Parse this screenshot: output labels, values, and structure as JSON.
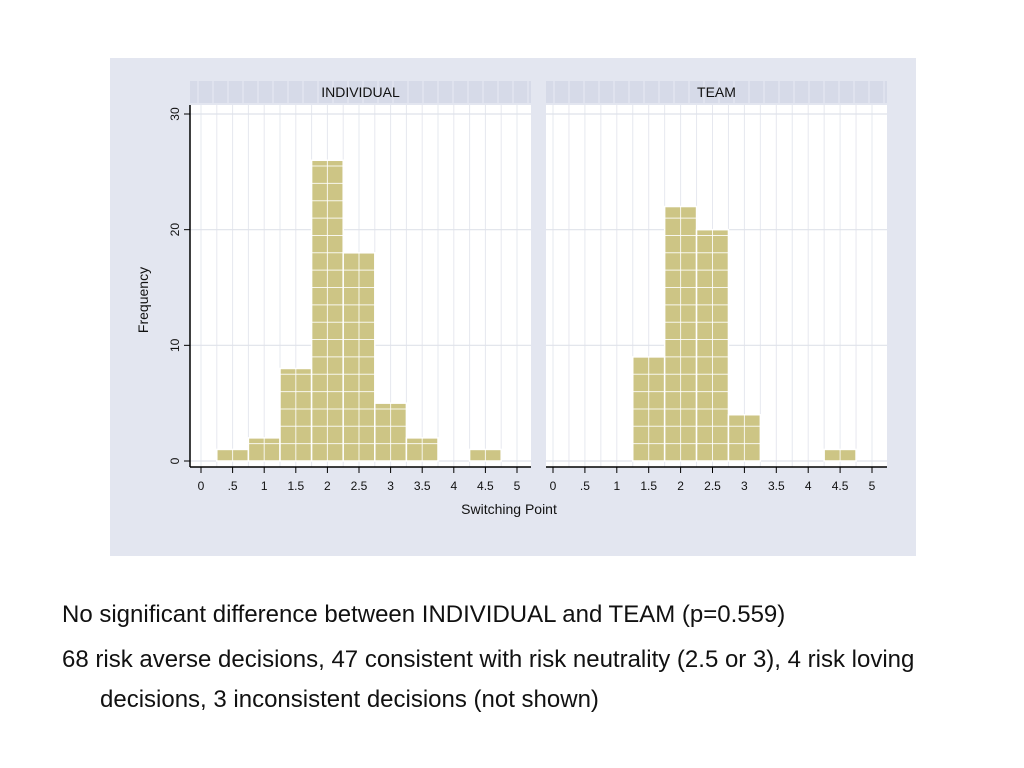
{
  "chart_data": {
    "type": "bar",
    "subtype": "histogram",
    "xlabel": "Switching Point",
    "ylabel": "Frequency",
    "xlim": [
      0,
      5
    ],
    "ylim": [
      0,
      30
    ],
    "x_ticks": [
      "0",
      ".5",
      "1",
      "1.5",
      "2",
      "2.5",
      "3",
      "3.5",
      "4",
      "4.5",
      "5"
    ],
    "y_ticks": [
      "0",
      "10",
      "20",
      "30"
    ],
    "bin_width": 0.5,
    "grid": true,
    "bar_color": "#cdc585",
    "bar_edge_color": "#ffffff",
    "panels": [
      {
        "name": "INDIVIDUAL",
        "bins": [
          {
            "x": 0.5,
            "value": 1
          },
          {
            "x": 1.0,
            "value": 2
          },
          {
            "x": 1.5,
            "value": 8
          },
          {
            "x": 2.0,
            "value": 26
          },
          {
            "x": 2.5,
            "value": 18
          },
          {
            "x": 3.0,
            "value": 5
          },
          {
            "x": 3.5,
            "value": 2
          },
          {
            "x": 4.5,
            "value": 1
          }
        ]
      },
      {
        "name": "TEAM",
        "bins": [
          {
            "x": 1.5,
            "value": 9
          },
          {
            "x": 2.0,
            "value": 22
          },
          {
            "x": 2.5,
            "value": 20
          },
          {
            "x": 3.0,
            "value": 4
          },
          {
            "x": 4.5,
            "value": 1
          }
        ]
      }
    ]
  },
  "notes": [
    "No significant difference between INDIVIDUAL and TEAM (p=0.559)",
    "68 risk averse decisions, 47 consistent with risk neutrality (2.5 or 3), 4 risk loving decisions, 3 inconsistent decisions (not shown)"
  ]
}
